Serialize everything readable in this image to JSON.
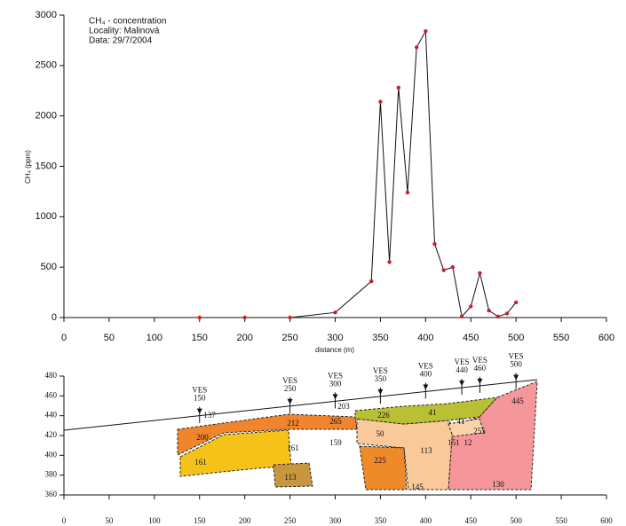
{
  "chart_data": [
    {
      "type": "line",
      "annotations": [
        "CH₄ - concentration",
        "Locality: Malinová",
        "Data: 29/7/2004"
      ],
      "ylabel": "CH₄ (ppm)",
      "xlabel": "distance (m)",
      "x": [
        150,
        200,
        250,
        300,
        340,
        350,
        360,
        370,
        380,
        390,
        400,
        410,
        420,
        430,
        440,
        450,
        460,
        470,
        480,
        490,
        500
      ],
      "values": [
        0,
        0,
        0,
        50,
        360,
        2140,
        550,
        2280,
        1240,
        2680,
        2840,
        730,
        470,
        500,
        10,
        110,
        440,
        70,
        10,
        40,
        150
      ],
      "color": "#cc1f2e",
      "line_color": "#111111",
      "xlim": [
        0,
        600
      ],
      "xticks": [
        0,
        50,
        100,
        150,
        200,
        250,
        300,
        350,
        400,
        450,
        500,
        550,
        600
      ],
      "ylim": [
        0,
        3000
      ],
      "yticks": [
        0,
        500,
        1000,
        1500,
        2000,
        2500,
        3000
      ]
    },
    {
      "type": "section",
      "ves_label": "VES",
      "ves": [
        150,
        250,
        300,
        350,
        400,
        440,
        460,
        500
      ],
      "labels": [
        200,
        161,
        212,
        161,
        159,
        113,
        265,
        226,
        50,
        225,
        113,
        41,
        41,
        151,
        12,
        255,
        445,
        130,
        145,
        137,
        203
      ],
      "xlim": [
        0,
        600
      ],
      "xticks": [
        0,
        50,
        100,
        150,
        200,
        250,
        300,
        350,
        400,
        450,
        500,
        550,
        600
      ],
      "ylim": [
        360,
        480
      ],
      "yticks": [
        360,
        380,
        400,
        420,
        440,
        460,
        480
      ]
    }
  ]
}
